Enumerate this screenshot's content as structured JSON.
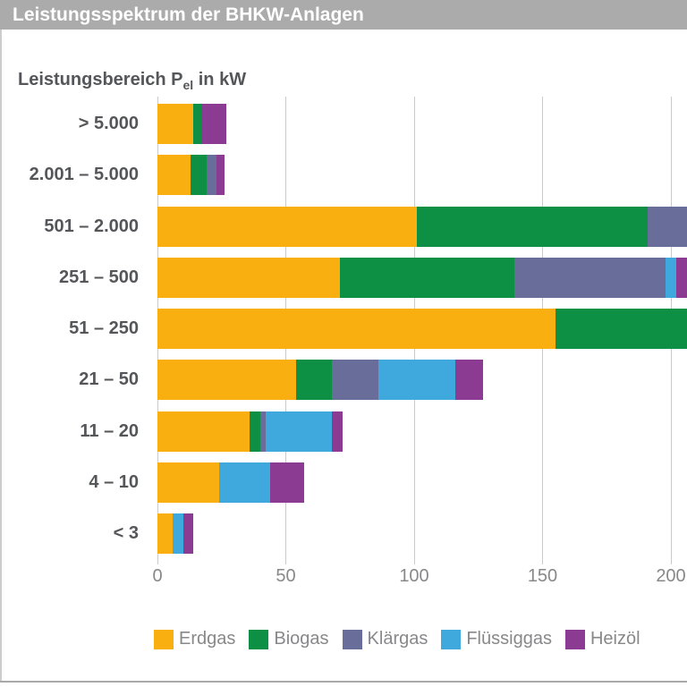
{
  "header": {
    "title": "Leistungsspektrum der BHKW-Anlagen"
  },
  "chart_data": {
    "type": "bar",
    "orientation": "horizontal-stacked",
    "title": "Leistungsspektrum der BHKW-Anlagen",
    "axis_title": {
      "prefix": "Leistungsbereich P",
      "sub": "el",
      "suffix": " in kW"
    },
    "categories": [
      "> 5.000",
      "2.001 – 5.000",
      "501 – 2.000",
      "251 – 500",
      "51 – 250",
      "21 – 50",
      "11 – 20",
      "4 – 10",
      "< 3"
    ],
    "series": [
      {
        "name": "Erdgas",
        "color": "#f9af0f",
        "values": [
          14,
          13,
          101,
          71,
          155,
          54,
          36,
          24,
          6
        ]
      },
      {
        "name": "Biogas",
        "color": "#0e9044",
        "values": [
          3,
          6,
          90,
          68,
          60,
          14,
          4,
          0,
          0
        ]
      },
      {
        "name": "Klärgas",
        "color": "#696d9a",
        "values": [
          0,
          4,
          25,
          59,
          0,
          18,
          2,
          0,
          0
        ]
      },
      {
        "name": "Flüssiggas",
        "color": "#3fa8dc",
        "values": [
          0,
          0,
          0,
          4,
          0,
          30,
          26,
          20,
          4
        ]
      },
      {
        "name": "Heizöl",
        "color": "#8b3c92",
        "values": [
          0,
          3,
          0,
          8,
          0,
          11,
          4,
          13,
          4
        ]
      }
    ],
    "heizoel_row1": 10,
    "x_ticks": [
      "0",
      "50",
      "100",
      "150",
      "200"
    ],
    "x_tick_values": [
      0,
      50,
      100,
      150,
      200
    ],
    "xlim_visible": [
      0,
      206
    ],
    "grid": "vertical",
    "legend_position": "bottom",
    "note": "Bars for 501 – 2.000, 251 – 500 and 51 – 250 extend beyond the right image edge (truncated); their last visible segment values are minimum estimates.",
    "colors": {
      "header_bg": "#ababab",
      "header_text": "#ffffff",
      "category_label": "#55565a",
      "tick_label": "#88888a",
      "gridline": "#cacaca"
    }
  }
}
